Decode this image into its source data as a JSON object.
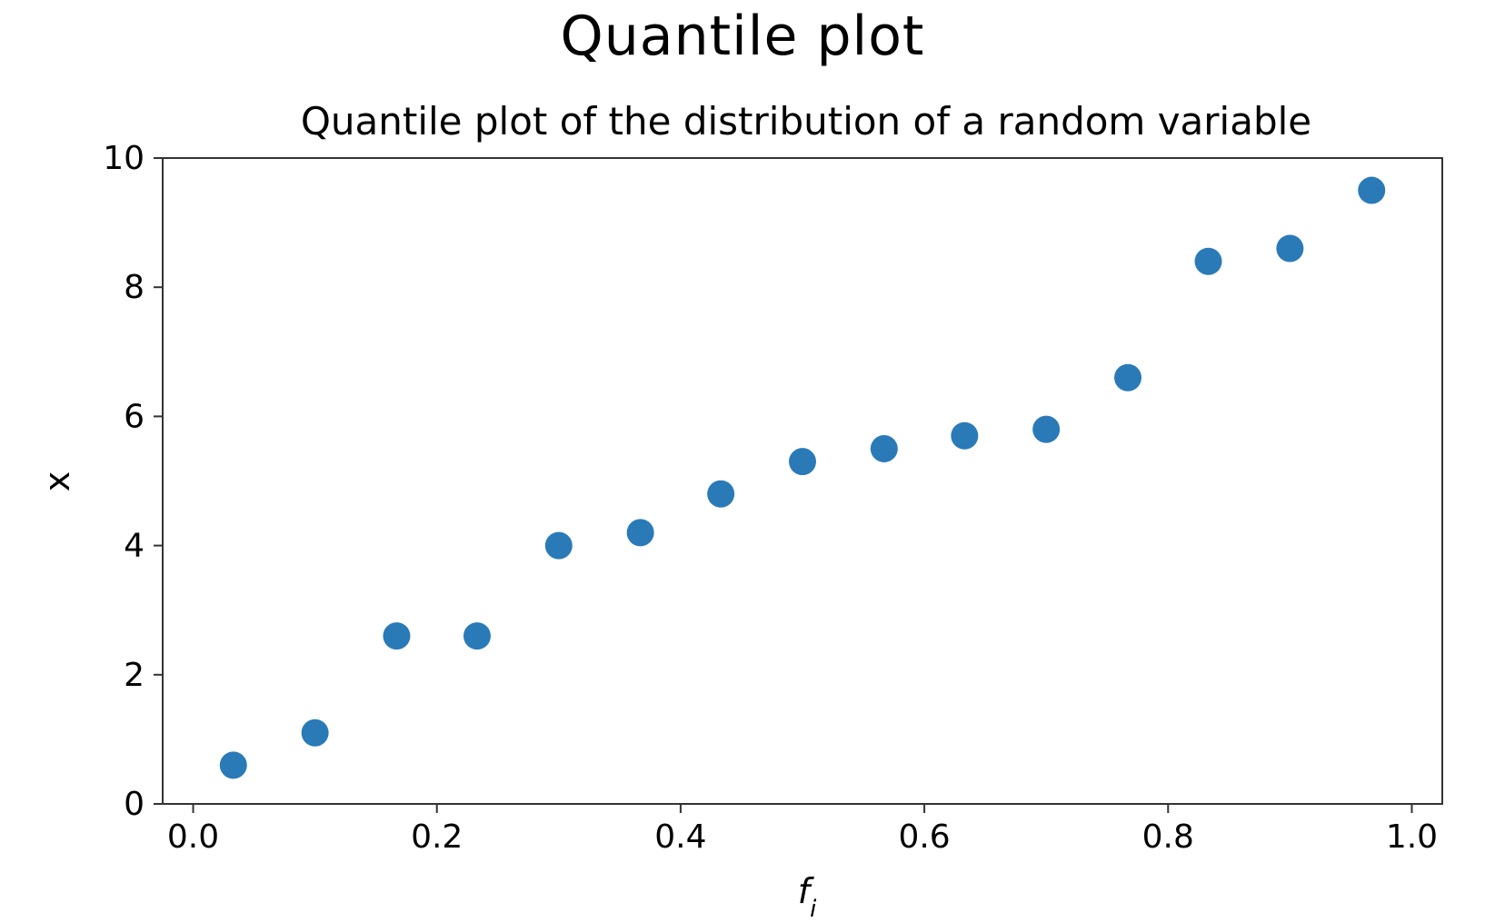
{
  "page": {
    "title": "Quantile plot"
  },
  "chart_data": {
    "type": "scatter",
    "title": "Quantile plot of the distribution of a random variable",
    "xlabel": "f",
    "xlabel_subscript": "i",
    "ylabel": "x",
    "xlim": [
      -0.025,
      1.025
    ],
    "ylim": [
      0,
      10
    ],
    "xticks": [
      0.0,
      0.2,
      0.4,
      0.6,
      0.8,
      1.0
    ],
    "xtick_labels": [
      "0.0",
      "0.2",
      "0.4",
      "0.6",
      "0.8",
      "1.0"
    ],
    "yticks": [
      0,
      2,
      4,
      6,
      8,
      10
    ],
    "ytick_labels": [
      "0",
      "2",
      "4",
      "6",
      "8",
      "10"
    ],
    "grid": false,
    "marker_color": "#2a7ab8",
    "x": [
      0.033,
      0.1,
      0.167,
      0.233,
      0.3,
      0.367,
      0.433,
      0.5,
      0.567,
      0.633,
      0.7,
      0.767,
      0.833,
      0.9,
      0.967
    ],
    "y": [
      0.6,
      1.1,
      2.6,
      2.6,
      4.0,
      4.2,
      4.8,
      5.3,
      5.5,
      5.7,
      5.8,
      6.6,
      8.4,
      8.6,
      9.5
    ]
  }
}
